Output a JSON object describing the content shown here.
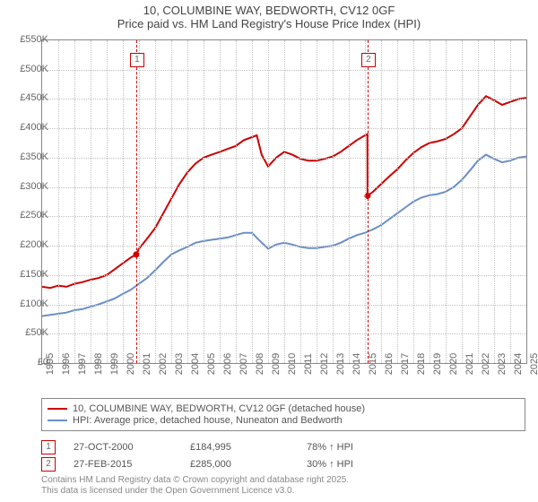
{
  "title": {
    "line1": "10, COLUMBINE WAY, BEDWORTH, CV12 0GF",
    "line2": "Price paid vs. HM Land Registry's House Price Index (HPI)"
  },
  "chart": {
    "type": "line",
    "background_color": "#ffffff",
    "grid_color": "#c0c0c0",
    "border_color": "#888888",
    "x_start": 1995,
    "x_end": 2025,
    "y_min": 0,
    "y_max": 550,
    "y_ticks": [
      0,
      50,
      100,
      150,
      200,
      250,
      300,
      350,
      400,
      450,
      500,
      550
    ],
    "y_tick_labels": [
      "£0",
      "£50K",
      "£100K",
      "£150K",
      "£200K",
      "£250K",
      "£300K",
      "£350K",
      "£400K",
      "£450K",
      "£500K",
      "£550K"
    ],
    "x_ticks": [
      1995,
      1996,
      1997,
      1998,
      1999,
      2000,
      2001,
      2002,
      2003,
      2004,
      2005,
      2006,
      2007,
      2008,
      2009,
      2010,
      2011,
      2012,
      2013,
      2014,
      2015,
      2016,
      2017,
      2018,
      2019,
      2020,
      2021,
      2022,
      2023,
      2024,
      2025
    ],
    "axis_label_fontsize": 11,
    "series": [
      {
        "name": "price_paid",
        "label": "10, COLUMBINE WAY, BEDWORTH, CV12 0GF (detached house)",
        "color": "#cc0000",
        "line_width": 2,
        "points": [
          [
            1995,
            130
          ],
          [
            1995.5,
            128
          ],
          [
            1996,
            132
          ],
          [
            1996.5,
            130
          ],
          [
            1997,
            135
          ],
          [
            1997.5,
            138
          ],
          [
            1998,
            142
          ],
          [
            1998.5,
            145
          ],
          [
            1999,
            150
          ],
          [
            1999.5,
            160
          ],
          [
            2000,
            170
          ],
          [
            2000.5,
            180
          ],
          [
            2000.83,
            185
          ],
          [
            2001,
            195
          ],
          [
            2001.5,
            212
          ],
          [
            2002,
            230
          ],
          [
            2002.5,
            255
          ],
          [
            2003,
            280
          ],
          [
            2003.5,
            305
          ],
          [
            2004,
            325
          ],
          [
            2004.5,
            340
          ],
          [
            2005,
            350
          ],
          [
            2005.5,
            355
          ],
          [
            2006,
            360
          ],
          [
            2006.5,
            365
          ],
          [
            2007,
            370
          ],
          [
            2007.5,
            380
          ],
          [
            2008,
            385
          ],
          [
            2008.3,
            388
          ],
          [
            2008.6,
            355
          ],
          [
            2009,
            335
          ],
          [
            2009.5,
            350
          ],
          [
            2010,
            360
          ],
          [
            2010.5,
            355
          ],
          [
            2011,
            348
          ],
          [
            2011.5,
            345
          ],
          [
            2012,
            345
          ],
          [
            2012.5,
            348
          ],
          [
            2013,
            352
          ],
          [
            2013.5,
            360
          ],
          [
            2014,
            370
          ],
          [
            2014.5,
            380
          ],
          [
            2015,
            388
          ],
          [
            2015.15,
            390
          ],
          [
            2015.16,
            285
          ],
          [
            2015.5,
            292
          ],
          [
            2016,
            305
          ],
          [
            2016.5,
            318
          ],
          [
            2017,
            330
          ],
          [
            2017.5,
            345
          ],
          [
            2018,
            358
          ],
          [
            2018.5,
            368
          ],
          [
            2019,
            375
          ],
          [
            2019.5,
            378
          ],
          [
            2020,
            382
          ],
          [
            2020.5,
            390
          ],
          [
            2021,
            400
          ],
          [
            2021.5,
            420
          ],
          [
            2022,
            440
          ],
          [
            2022.5,
            455
          ],
          [
            2023,
            448
          ],
          [
            2023.5,
            440
          ],
          [
            2024,
            445
          ],
          [
            2024.5,
            450
          ],
          [
            2025,
            452
          ]
        ],
        "dots": [
          {
            "x": 2000.83,
            "y": 185
          },
          {
            "x": 2015.16,
            "y": 285
          }
        ]
      },
      {
        "name": "hpi",
        "label": "HPI: Average price, detached house, Nuneaton and Bedworth",
        "color": "#6b8fc7",
        "line_width": 2,
        "points": [
          [
            1995,
            80
          ],
          [
            1995.5,
            82
          ],
          [
            1996,
            84
          ],
          [
            1996.5,
            86
          ],
          [
            1997,
            90
          ],
          [
            1997.5,
            92
          ],
          [
            1998,
            96
          ],
          [
            1998.5,
            100
          ],
          [
            1999,
            105
          ],
          [
            1999.5,
            110
          ],
          [
            2000,
            118
          ],
          [
            2000.5,
            125
          ],
          [
            2001,
            135
          ],
          [
            2001.5,
            145
          ],
          [
            2002,
            158
          ],
          [
            2002.5,
            172
          ],
          [
            2003,
            185
          ],
          [
            2003.5,
            192
          ],
          [
            2004,
            198
          ],
          [
            2004.5,
            205
          ],
          [
            2005,
            208
          ],
          [
            2005.5,
            210
          ],
          [
            2006,
            212
          ],
          [
            2006.5,
            214
          ],
          [
            2007,
            218
          ],
          [
            2007.5,
            222
          ],
          [
            2008,
            222
          ],
          [
            2008.5,
            208
          ],
          [
            2009,
            195
          ],
          [
            2009.5,
            202
          ],
          [
            2010,
            205
          ],
          [
            2010.5,
            202
          ],
          [
            2011,
            198
          ],
          [
            2011.5,
            196
          ],
          [
            2012,
            196
          ],
          [
            2012.5,
            198
          ],
          [
            2013,
            200
          ],
          [
            2013.5,
            205
          ],
          [
            2014,
            212
          ],
          [
            2014.5,
            218
          ],
          [
            2015,
            222
          ],
          [
            2015.5,
            228
          ],
          [
            2016,
            235
          ],
          [
            2016.5,
            245
          ],
          [
            2017,
            255
          ],
          [
            2017.5,
            265
          ],
          [
            2018,
            275
          ],
          [
            2018.5,
            282
          ],
          [
            2019,
            286
          ],
          [
            2019.5,
            288
          ],
          [
            2020,
            292
          ],
          [
            2020.5,
            300
          ],
          [
            2021,
            312
          ],
          [
            2021.5,
            328
          ],
          [
            2022,
            345
          ],
          [
            2022.5,
            355
          ],
          [
            2023,
            348
          ],
          [
            2023.5,
            342
          ],
          [
            2024,
            345
          ],
          [
            2024.5,
            350
          ],
          [
            2025,
            352
          ]
        ]
      }
    ],
    "vlines": [
      {
        "x": 2000.83,
        "color": "#cc0000",
        "badge": "1"
      },
      {
        "x": 2015.16,
        "color": "#cc0000",
        "badge": "2"
      }
    ]
  },
  "legend": {
    "border_color": "#888888",
    "items": [
      {
        "color": "#cc0000",
        "label": "10, COLUMBINE WAY, BEDWORTH, CV12 0GF (detached house)"
      },
      {
        "color": "#6b8fc7",
        "label": "HPI: Average price, detached house, Nuneaton and Bedworth"
      }
    ]
  },
  "sales": [
    {
      "badge": "1",
      "badge_color": "#cc0000",
      "date": "27-OCT-2000",
      "price": "£184,995",
      "note": "78% ↑ HPI"
    },
    {
      "badge": "2",
      "badge_color": "#cc0000",
      "date": "27-FEB-2015",
      "price": "£285,000",
      "note": "30% ↑ HPI"
    }
  ],
  "footer": {
    "line1": "Contains HM Land Registry data © Crown copyright and database right 2025.",
    "line2": "This data is licensed under the Open Government Licence v3.0."
  }
}
